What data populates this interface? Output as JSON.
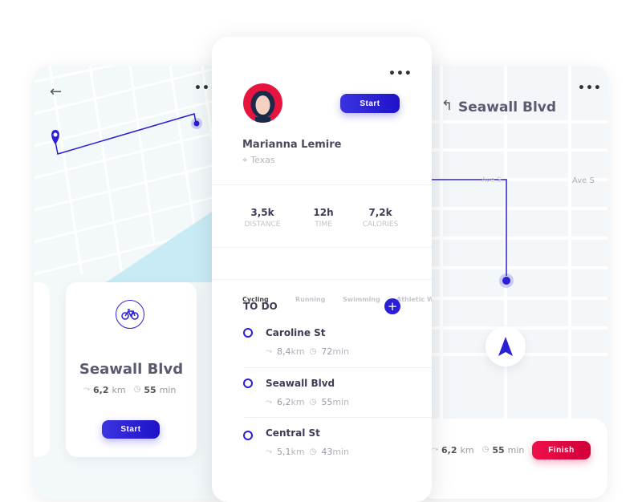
{
  "colors": {
    "accent": "#2a1fd6",
    "danger": "#e8063f",
    "water": "#c9ebf5"
  },
  "left": {
    "back_icon": "arrow-left-icon",
    "menu": "•••",
    "route_card": {
      "icon": "bicycle-icon",
      "title": "Seawall Blvd",
      "distance_value": "6,2",
      "distance_unit": "km",
      "time_value": "55",
      "time_unit": "min",
      "start_label": "Start"
    }
  },
  "center": {
    "menu": "•••",
    "user": {
      "name": "Marianna Lemire",
      "location": "Texas"
    },
    "start_label": "Start",
    "stats": [
      {
        "value": "3,5k",
        "label": "DISTANCE"
      },
      {
        "value": "12h",
        "label": "TIME"
      },
      {
        "value": "7,2k",
        "label": "CALORIES"
      }
    ],
    "tabs": [
      "Cycling",
      "Running",
      "Swimming",
      "Athletic Walking"
    ],
    "active_tab": "Cycling",
    "todo_title": "TO DO",
    "todo": [
      {
        "title": "Caroline St",
        "distance_value": "8,4",
        "distance_unit": "km",
        "time_value": "72",
        "time_unit": "min"
      },
      {
        "title": "Seawall Blvd",
        "distance_value": "6,2",
        "distance_unit": "km",
        "time_value": "55",
        "time_unit": "min"
      },
      {
        "title": "Central St",
        "distance_value": "5,1",
        "distance_unit": "km",
        "time_value": "43",
        "time_unit": "min"
      }
    ]
  },
  "right": {
    "menu": "•••",
    "direction_icon": "turn-left-icon",
    "street": "Seawall Blvd",
    "street_labels": [
      "Ave S",
      "Ave S"
    ],
    "navigation_icon": "navigation-arrow-icon",
    "distance_value": "6,2",
    "distance_unit": "km",
    "time_value": "55",
    "time_unit": "min",
    "finish_label": "Finish"
  }
}
